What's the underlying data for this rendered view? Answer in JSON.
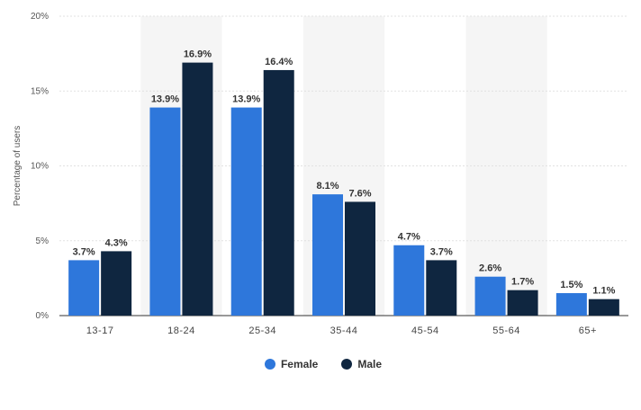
{
  "chart_data": {
    "type": "bar",
    "title": "",
    "xlabel": "",
    "ylabel": "Percentage of users",
    "ylim": [
      0,
      20
    ],
    "yticks": [
      "0%",
      "5%",
      "10%",
      "15%",
      "20%"
    ],
    "ytick_values": [
      0,
      5,
      10,
      15,
      20
    ],
    "categories": [
      "13-17",
      "18-24",
      "25-34",
      "35-44",
      "45-54",
      "55-64",
      "65+"
    ],
    "series": [
      {
        "name": "Female",
        "color": "#2e77db",
        "values": [
          3.7,
          13.9,
          13.9,
          8.1,
          4.7,
          2.6,
          1.5
        ],
        "labels": [
          "3.7%",
          "13.9%",
          "13.9%",
          "8.1%",
          "4.7%",
          "2.6%",
          "1.5%"
        ]
      },
      {
        "name": "Male",
        "color": "#0f2640",
        "values": [
          4.3,
          16.9,
          16.4,
          7.6,
          3.7,
          1.7,
          1.1
        ],
        "labels": [
          "4.3%",
          "16.9%",
          "16.4%",
          "7.6%",
          "3.7%",
          "1.7%",
          "1.1%"
        ]
      }
    ],
    "grid": true,
    "legend_position": "bottom-center",
    "alternating_band_color": "#f5f5f5"
  }
}
